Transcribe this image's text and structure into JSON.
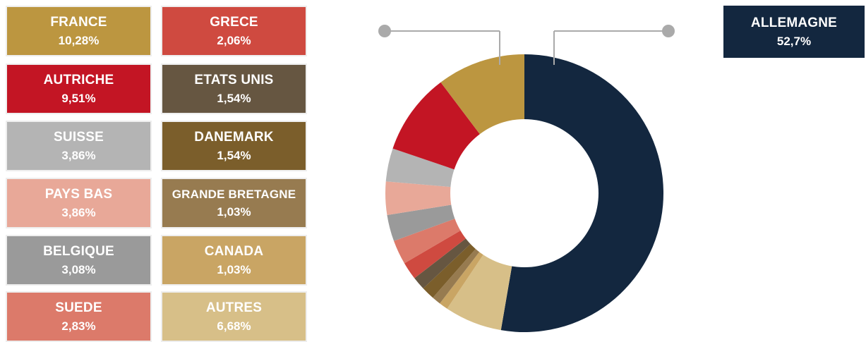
{
  "chart_data": {
    "type": "pie",
    "donut": true,
    "title": "",
    "slices": [
      {
        "label": "ALLEMAGNE",
        "value_label": "52,7%",
        "value": 52.7,
        "color": "#13273f"
      },
      {
        "label": "AUTRES",
        "value_label": "6,68%",
        "value": 6.68,
        "color": "#d7bf88"
      },
      {
        "label": "CANADA",
        "value_label": "1,03%",
        "value": 1.03,
        "color": "#c9a564"
      },
      {
        "label": "GRANDE BRETAGNE",
        "value_label": "1,03%",
        "value": 1.03,
        "color": "#977b50"
      },
      {
        "label": "DANEMARK",
        "value_label": "1,54%",
        "value": 1.54,
        "color": "#7b5e2b"
      },
      {
        "label": "ETATS UNIS",
        "value_label": "1,54%",
        "value": 1.54,
        "color": "#665641"
      },
      {
        "label": "GRECE",
        "value_label": "2,06%",
        "value": 2.06,
        "color": "#cf4a40"
      },
      {
        "label": "SUEDE",
        "value_label": "2,83%",
        "value": 2.83,
        "color": "#dc7a6a"
      },
      {
        "label": "BELGIQUE",
        "value_label": "3,08%",
        "value": 3.08,
        "color": "#9a9a9a"
      },
      {
        "label": "PAYS BAS",
        "value_label": "3,86%",
        "value": 3.86,
        "color": "#e8a898"
      },
      {
        "label": "SUISSE",
        "value_label": "3,86%",
        "value": 3.86,
        "color": "#b4b4b4"
      },
      {
        "label": "AUTRICHE",
        "value_label": "9,51%",
        "value": 9.51,
        "color": "#c31524"
      },
      {
        "label": "FRANCE",
        "value_label": "10,28%",
        "value": 10.28,
        "color": "#bc9640"
      }
    ],
    "legend_grid": [
      [
        0,
        12,
        6
      ],
      [
        0,
        11,
        5
      ],
      [
        0,
        10,
        4
      ],
      [
        0,
        9,
        3
      ],
      [
        0,
        8,
        2
      ],
      [
        0,
        7,
        1
      ]
    ],
    "callout": {
      "label": "ALLEMAGNE",
      "value_label": "52,7%"
    },
    "accent_dot_color": "#aaaaaa"
  }
}
